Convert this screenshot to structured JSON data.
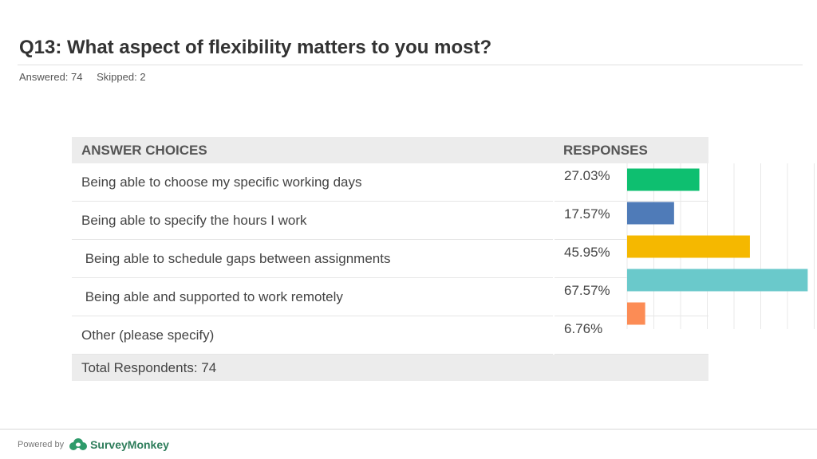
{
  "question": {
    "title": "Q13: What aspect of flexibility matters to you most?",
    "answered": "Answered: 74",
    "skipped": "Skipped: 2"
  },
  "table": {
    "header_choice": "ANSWER CHOICES",
    "header_responses": "RESPONSES",
    "total": "Total Respondents: 74"
  },
  "chart_data": {
    "type": "bar",
    "orientation": "horizontal",
    "categories": [
      "Being able to choose my specific working days",
      "Being able to specify the hours I work",
      " Being able to schedule gaps between assignments",
      " Being able and supported to work remotely",
      "Other (please specify)"
    ],
    "values": [
      27.03,
      17.57,
      45.95,
      67.57,
      6.76
    ],
    "labels": [
      "27.03%",
      "17.57%",
      "45.95%",
      "67.57%",
      "6.76%"
    ],
    "colors": [
      "#0ebf70",
      "#4f7bb8",
      "#f5b800",
      "#6ac9cb",
      "#fc8c55"
    ],
    "xlim": [
      0,
      70
    ],
    "grid": true,
    "title": "Q13: What aspect of flexibility matters to you most?"
  },
  "footer": {
    "powered": "Powered by",
    "brand": "SurveyMonkey"
  }
}
